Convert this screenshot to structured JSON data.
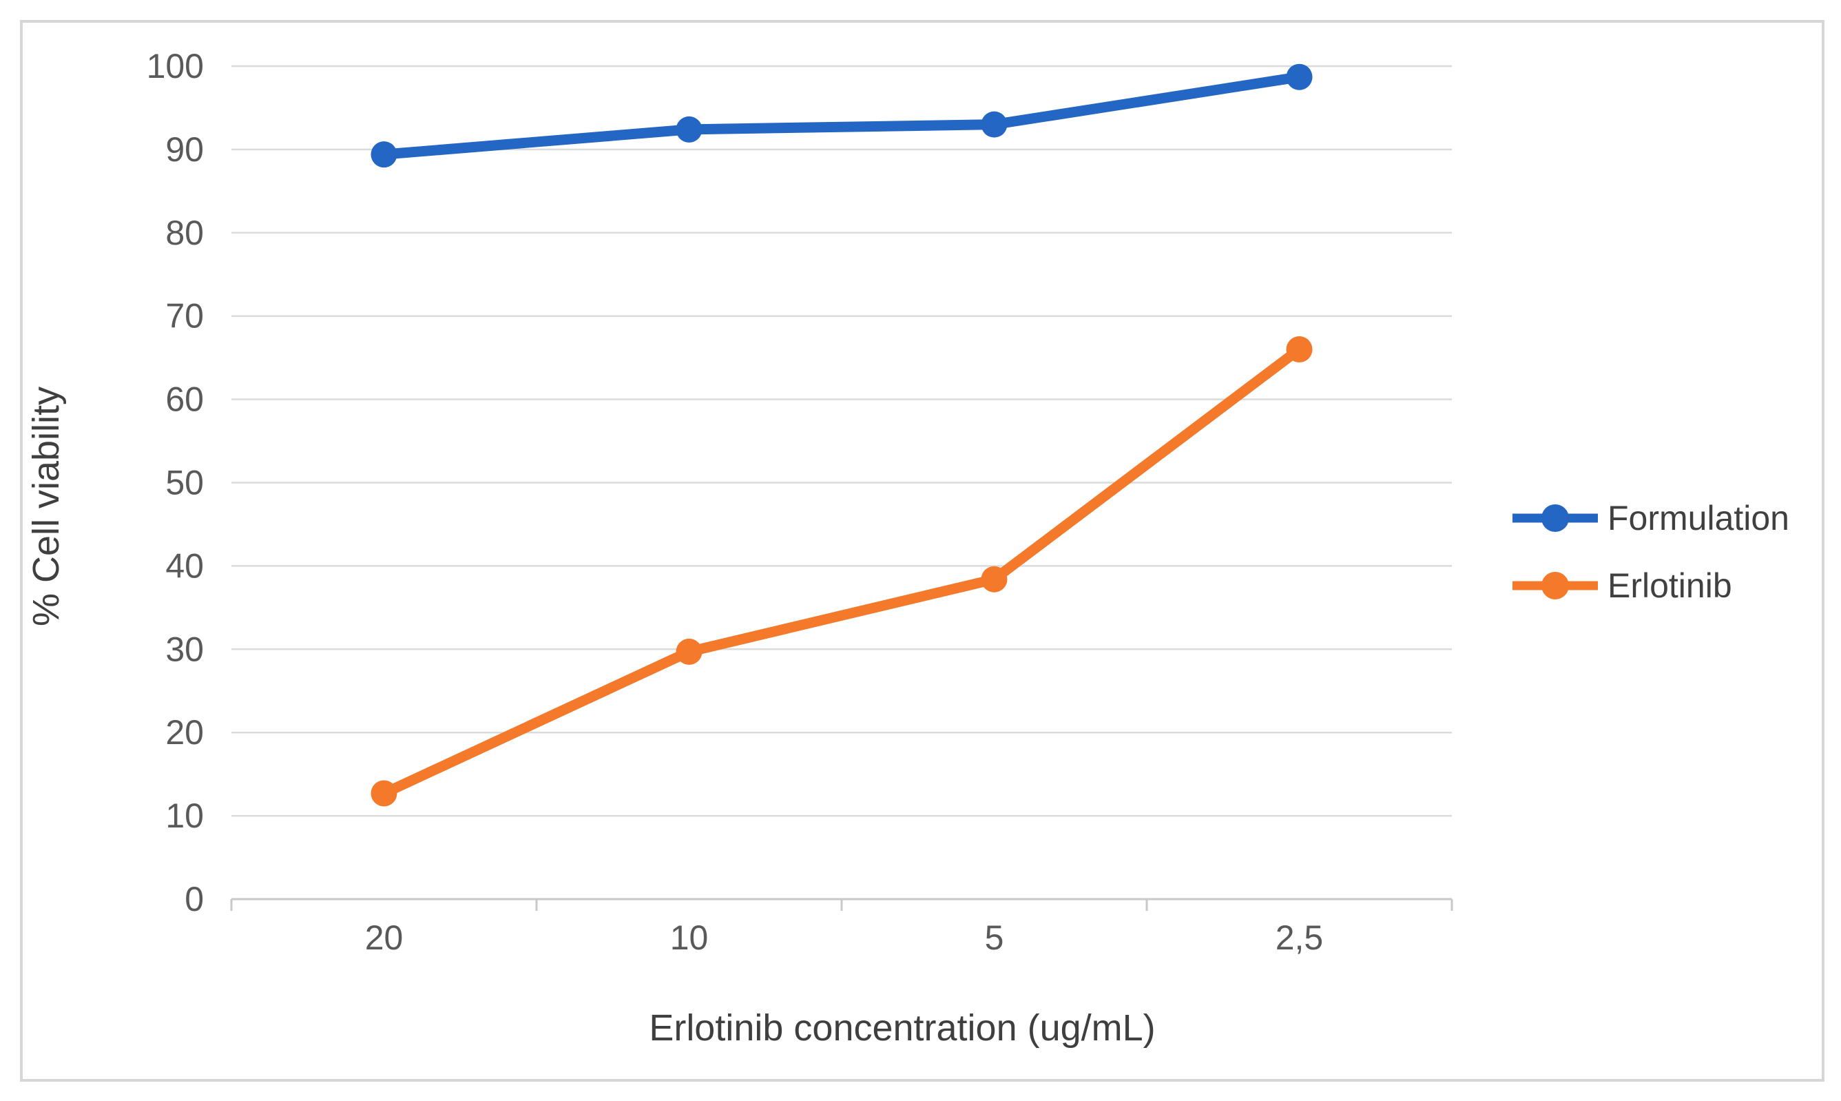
{
  "figure": {
    "background": "#FFFFFF",
    "border_color": "#D6D6D6"
  },
  "chart_data": {
    "type": "line",
    "categories": [
      "20",
      "10",
      "5",
      "2,5"
    ],
    "series": [
      {
        "name": "Formulation",
        "color": "#2366C4",
        "values": [
          89.4,
          92.4,
          93.0,
          98.7
        ]
      },
      {
        "name": "Erlotinib",
        "color": "#F4792A",
        "values": [
          12.7,
          29.7,
          38.4,
          66.0
        ]
      }
    ],
    "xlabel": "Erlotinib concentration (ug/mL)",
    "ylabel": "% Cell viability",
    "ylim": [
      0,
      100
    ],
    "yticks": [
      0,
      10,
      20,
      30,
      40,
      50,
      60,
      70,
      80,
      90,
      100
    ],
    "grid": true,
    "legend_position": "right",
    "marker": "circle",
    "gridline_color": "#DBDBDB",
    "axis_line_color": "#C9C9C9",
    "tick_label_color": "#595959",
    "axis_title_color": "#3F3F3F",
    "legend_text_color": "#404040"
  }
}
